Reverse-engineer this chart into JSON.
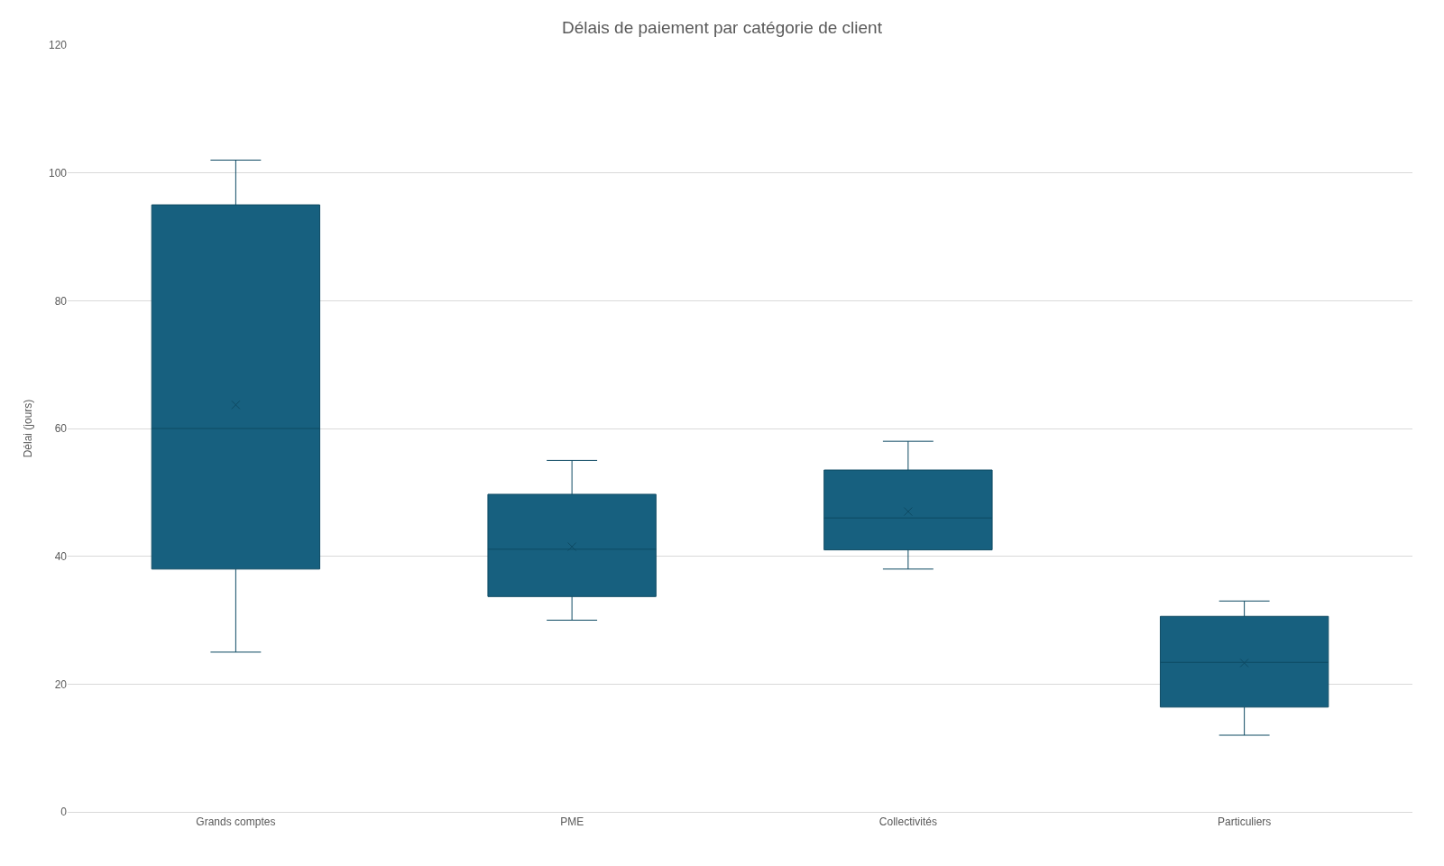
{
  "chart_data": {
    "type": "box",
    "title": "Délais de paiement par catégorie de client",
    "ylabel": "Délai (jours)",
    "categories": [
      "Grands comptes",
      "PME",
      "Collectivités",
      "Particuliers"
    ],
    "color": "#17607f",
    "boxes": [
      {
        "low": 25,
        "q1": 38,
        "median": 60,
        "q3": 95,
        "high": 102,
        "mean": 63.7
      },
      {
        "low": 30,
        "q1": 33.7,
        "median": 41.1,
        "q3": 49.7,
        "high": 55,
        "mean": 41.5
      },
      {
        "low": 38,
        "q1": 41,
        "median": 46,
        "q3": 53.5,
        "high": 58,
        "mean": 47
      },
      {
        "low": 12,
        "q1": 16.4,
        "median": 23.4,
        "q3": 30.6,
        "high": 33,
        "mean": 23.3
      }
    ],
    "ylim": [
      0,
      120
    ],
    "yticks": [
      0,
      20,
      40,
      60,
      80,
      100,
      120
    ],
    "grid": "y"
  }
}
